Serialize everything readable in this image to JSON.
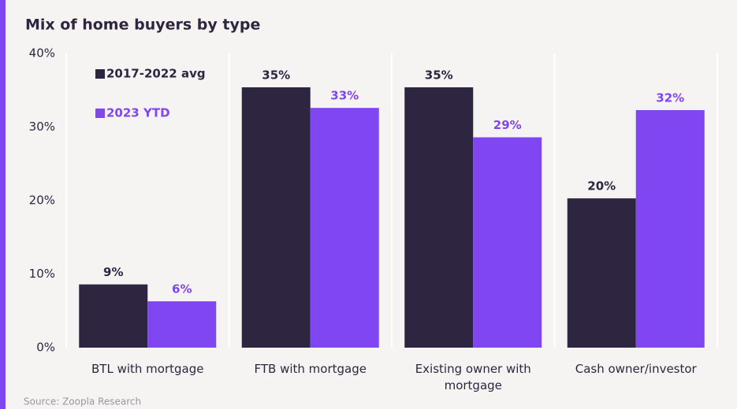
{
  "chart_data": {
    "type": "bar",
    "title": "Mix of home buyers by type",
    "categories": [
      "BTL with mortgage",
      "FTB with mortgage",
      "Existing owner with mortgage",
      "Cash owner/investor"
    ],
    "series": [
      {
        "name": "2017-2022 avg",
        "color": "#2e2640",
        "values": [
          8.6,
          35.4,
          35.4,
          20.3
        ],
        "value_labels": [
          "9%",
          "35%",
          "35%",
          "20%"
        ]
      },
      {
        "name": "2023 YTD",
        "color": "#8046f1",
        "values": [
          6.3,
          32.6,
          28.6,
          32.3
        ],
        "value_labels": [
          "6%",
          "33%",
          "29%",
          "32%"
        ]
      }
    ],
    "ylim": [
      0,
      40
    ],
    "yticks": [
      {
        "value": 0,
        "label": "0%"
      },
      {
        "value": 10,
        "label": "10%"
      },
      {
        "value": 20,
        "label": "20%"
      },
      {
        "value": 30,
        "label": "30%"
      },
      {
        "value": 40,
        "label": "40%"
      }
    ],
    "grid": false,
    "legend": "upper left",
    "source": "Source: Zoopla Research"
  }
}
